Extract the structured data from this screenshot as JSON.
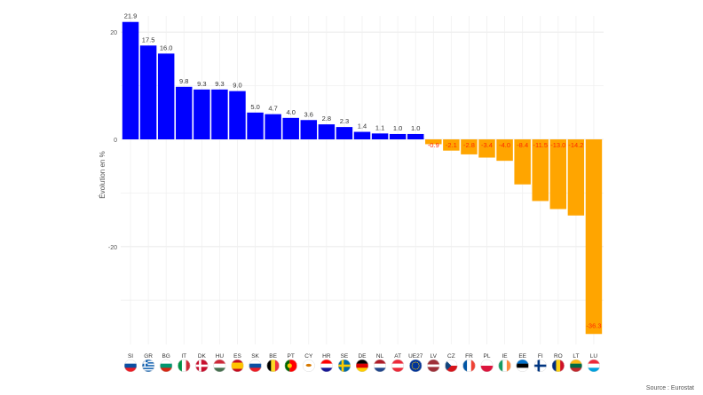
{
  "chart_data": {
    "type": "bar",
    "ylabel": "Évolution en %",
    "ylim": [
      -37,
      23
    ],
    "yticks": [
      20,
      0,
      -20
    ],
    "grid": true,
    "categories": [
      "SI",
      "GR",
      "BG",
      "IT",
      "DK",
      "HU",
      "ES",
      "SK",
      "BE",
      "PT",
      "CY",
      "HR",
      "SE",
      "DE",
      "NL",
      "AT",
      "UE27",
      "LV",
      "CZ",
      "FR",
      "PL",
      "IE",
      "EE",
      "FI",
      "RO",
      "LT",
      "LU"
    ],
    "values": [
      21.9,
      17.5,
      16.0,
      9.8,
      9.3,
      9.3,
      9.0,
      5.0,
      4.7,
      4.0,
      3.6,
      2.8,
      2.3,
      1.4,
      1.1,
      1.0,
      1.0,
      -0.9,
      -2.1,
      -2.8,
      -3.4,
      -4.0,
      -8.4,
      -11.5,
      -13.0,
      -14.2,
      -36.3
    ],
    "labels": [
      "21.9",
      "17.5",
      "16.0",
      "9.8",
      "9.3",
      "9.3",
      "9.0",
      "5.0",
      "4.7",
      "4.0",
      "3.6",
      "2.8",
      "2.3",
      "1.4",
      "1.1",
      "1.0",
      "1.0",
      "-0.9",
      "-2.1",
      "-2.8",
      "-3.4",
      "-4.0",
      "-8.4",
      "-11.5",
      "-13.0",
      "-14.2",
      "-36.3"
    ],
    "positive_color": "#0000ff",
    "negative_color": "#ffa500",
    "negative_label_color": "#ff2a00"
  },
  "source": "Source : Eurostat",
  "flags": {
    "SI": {
      "kind": "h",
      "colors": [
        "#ffffff",
        "#0b4ea2",
        "#ed1c24"
      ]
    },
    "GR": {
      "kind": "gr",
      "colors": [
        "#0d5eaf",
        "#ffffff"
      ]
    },
    "BG": {
      "kind": "h",
      "colors": [
        "#ffffff",
        "#00966e",
        "#d62612"
      ]
    },
    "IT": {
      "kind": "v",
      "colors": [
        "#009246",
        "#ffffff",
        "#ce2b37"
      ]
    },
    "DK": {
      "kind": "cross",
      "colors": [
        "#c8102e",
        "#ffffff"
      ]
    },
    "HU": {
      "kind": "h",
      "colors": [
        "#ce2939",
        "#ffffff",
        "#477050"
      ]
    },
    "ES": {
      "kind": "hes",
      "colors": [
        "#c60b1e",
        "#ffc400",
        "#c60b1e"
      ]
    },
    "SK": {
      "kind": "h",
      "colors": [
        "#ffffff",
        "#0b4ea2",
        "#ee1c25"
      ]
    },
    "BE": {
      "kind": "v",
      "colors": [
        "#000000",
        "#fdda24",
        "#ef3340"
      ]
    },
    "PT": {
      "kind": "pt",
      "colors": [
        "#006600",
        "#ff0000"
      ]
    },
    "CY": {
      "kind": "cy",
      "colors": [
        "#ffffff",
        "#d57800"
      ]
    },
    "HR": {
      "kind": "h",
      "colors": [
        "#ff0000",
        "#ffffff",
        "#171796"
      ]
    },
    "SE": {
      "kind": "cross",
      "colors": [
        "#006aa7",
        "#fecc00"
      ]
    },
    "DE": {
      "kind": "h",
      "colors": [
        "#000000",
        "#dd0000",
        "#ffce00"
      ]
    },
    "NL": {
      "kind": "h",
      "colors": [
        "#ae1c28",
        "#ffffff",
        "#21468b"
      ]
    },
    "AT": {
      "kind": "h",
      "colors": [
        "#ed2939",
        "#ffffff",
        "#ed2939"
      ]
    },
    "UE27": {
      "kind": "eu",
      "colors": [
        "#003399",
        "#ffcc00"
      ]
    },
    "LV": {
      "kind": "hlv",
      "colors": [
        "#9e3039",
        "#ffffff",
        "#9e3039"
      ]
    },
    "CZ": {
      "kind": "cz",
      "colors": [
        "#ffffff",
        "#d7141a",
        "#11457e"
      ]
    },
    "FR": {
      "kind": "v",
      "colors": [
        "#0055a4",
        "#ffffff",
        "#ef4135"
      ]
    },
    "PL": {
      "kind": "h2",
      "colors": [
        "#ffffff",
        "#dc143c"
      ]
    },
    "IE": {
      "kind": "v",
      "colors": [
        "#169b62",
        "#ffffff",
        "#ff883e"
      ]
    },
    "EE": {
      "kind": "h",
      "colors": [
        "#0072ce",
        "#000000",
        "#ffffff"
      ]
    },
    "FI": {
      "kind": "cross",
      "colors": [
        "#ffffff",
        "#003580"
      ]
    },
    "RO": {
      "kind": "v",
      "colors": [
        "#002b7f",
        "#fcd116",
        "#ce1126"
      ]
    },
    "LT": {
      "kind": "h",
      "colors": [
        "#fdb913",
        "#006a44",
        "#c1272d"
      ]
    },
    "LU": {
      "kind": "h",
      "colors": [
        "#ed2939",
        "#ffffff",
        "#00a1de"
      ]
    }
  }
}
